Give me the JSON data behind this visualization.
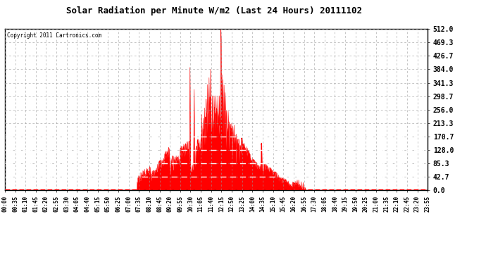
{
  "title": "Solar Radiation per Minute W/m2 (Last 24 Hours) 20111102",
  "copyright": "Copyright 2011 Cartronics.com",
  "fill_color": "#ff0000",
  "line_color": "#ff0000",
  "bg_color": "#ffffff",
  "grid_color": "#bbbbbb",
  "dashed_line_color": "#ff0000",
  "y_ticks": [
    0.0,
    42.7,
    85.3,
    128.0,
    170.7,
    213.3,
    256.0,
    298.7,
    341.3,
    384.0,
    426.7,
    469.3,
    512.0
  ],
  "x_tick_labels": [
    "00:00",
    "00:35",
    "01:10",
    "01:45",
    "02:20",
    "02:55",
    "03:30",
    "04:05",
    "04:40",
    "05:15",
    "05:50",
    "06:25",
    "07:00",
    "07:35",
    "08:10",
    "08:45",
    "09:20",
    "09:55",
    "10:30",
    "11:05",
    "11:40",
    "12:15",
    "12:50",
    "13:25",
    "14:00",
    "14:35",
    "15:10",
    "15:45",
    "16:20",
    "16:55",
    "17:30",
    "18:05",
    "18:40",
    "19:15",
    "19:50",
    "20:25",
    "21:00",
    "21:35",
    "22:10",
    "22:45",
    "23:20",
    "23:55"
  ],
  "ylim": [
    0,
    512
  ],
  "total_minutes": 1440,
  "dashed_white_levels": [
    42.7,
    85.3,
    128.0,
    170.7
  ]
}
